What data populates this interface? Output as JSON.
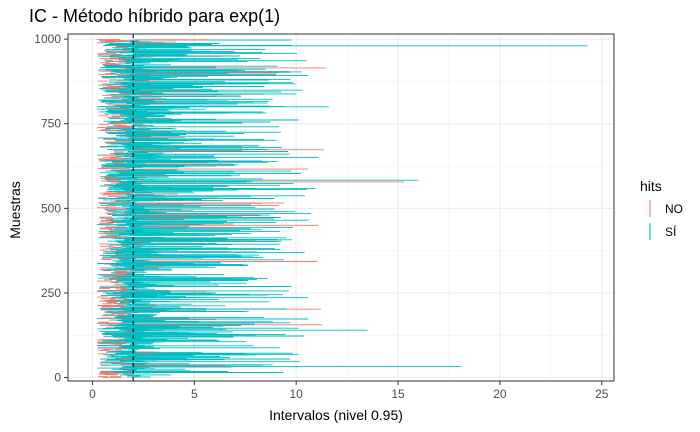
{
  "chart_data": {
    "type": "interval",
    "title": "IC - Método híbrido para exp(1)",
    "xlabel": "Intervalos (nivel 0.95)",
    "ylabel": "Muestras",
    "xlim": [
      -1.2,
      25.6
    ],
    "ylim": [
      -10,
      1015
    ],
    "x_ticks": [
      0,
      5,
      10,
      15,
      20,
      25
    ],
    "y_ticks": [
      0,
      250,
      500,
      750,
      1000
    ],
    "reference_line": {
      "x": 2,
      "style": "dashed"
    },
    "legend": {
      "title": "hits",
      "position": "right",
      "entries": [
        {
          "label": "NO",
          "color": "#f8766d"
        },
        {
          "label": "SÍ",
          "color": "#00bfc4"
        }
      ]
    },
    "n_samples": 1000,
    "notable_intervals": [
      {
        "sample": 980,
        "lower": 1.8,
        "upper": 24.3,
        "hit": "SÍ"
      },
      {
        "sample": 583,
        "lower": 1.7,
        "upper": 16.0,
        "hit": "SÍ"
      },
      {
        "sample": 578,
        "lower": 2.2,
        "upper": 15.3,
        "hit": "NO"
      },
      {
        "sample": 450,
        "lower": 2.5,
        "upper": 11.1,
        "hit": "NO"
      },
      {
        "sample": 33,
        "lower": 1.5,
        "upper": 18.1,
        "hit": "SÍ"
      },
      {
        "sample": 140,
        "lower": 1.3,
        "upper": 13.5,
        "hit": "SÍ"
      },
      {
        "sample": 800,
        "lower": 1.6,
        "upper": 11.6,
        "hit": "SÍ"
      }
    ],
    "grid": true
  }
}
